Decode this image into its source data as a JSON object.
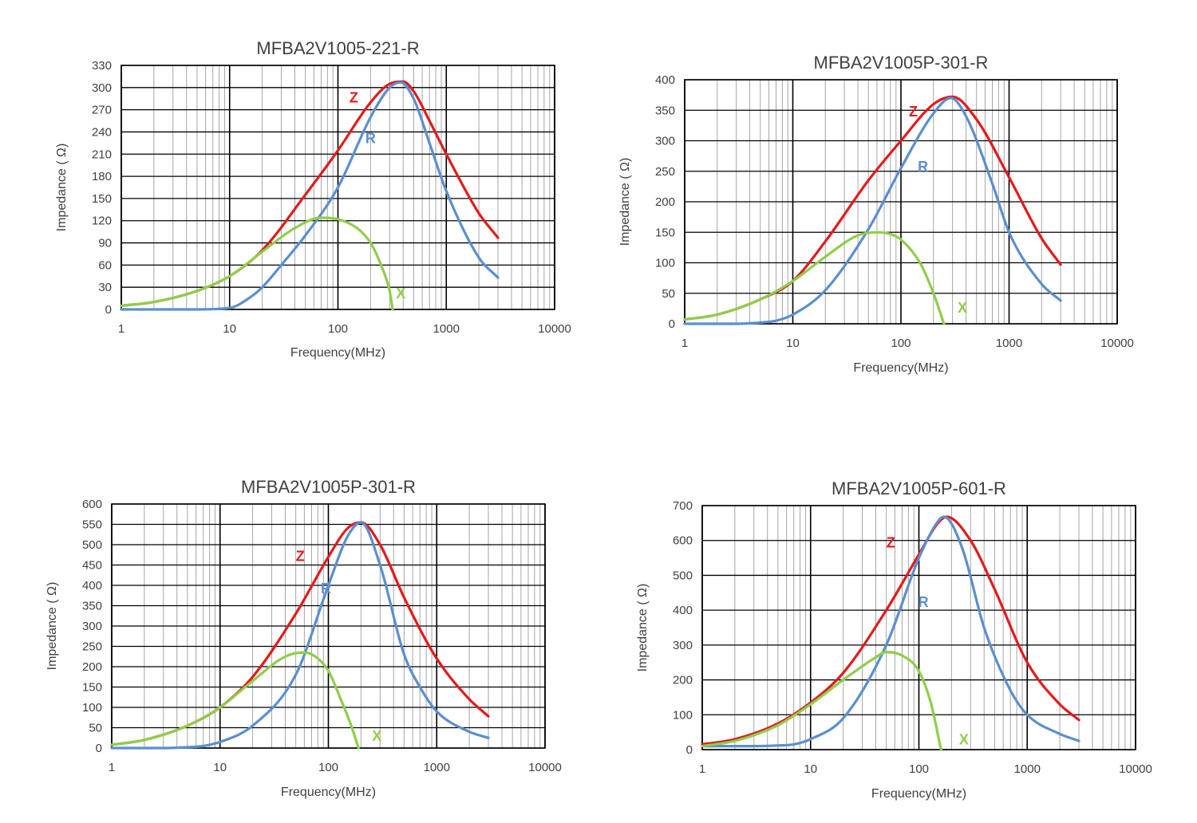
{
  "chart_data": [
    {
      "type": "line",
      "title": "MFBA2V1005-221-R",
      "xlabel": "Frequency(MHz)",
      "ylabel": "Impedance ( Ω)",
      "xscale": "log",
      "xlim": [
        1,
        10000
      ],
      "ylim": [
        0,
        330
      ],
      "yticks": [
        0,
        30,
        60,
        90,
        120,
        150,
        180,
        210,
        240,
        270,
        300,
        330
      ],
      "xticks": [
        1,
        10,
        100,
        1000,
        10000
      ],
      "xtick_labels": [
        "1",
        "10",
        "100",
        "1000",
        "10000"
      ],
      "series": [
        {
          "name": "Z",
          "color": "#e31a1c",
          "x": [
            1,
            2,
            5,
            10,
            20,
            50,
            100,
            200,
            300,
            400,
            500,
            700,
            1000,
            2000,
            3000
          ],
          "y": [
            5,
            10,
            25,
            45,
            80,
            155,
            215,
            280,
            305,
            308,
            295,
            255,
            210,
            130,
            97
          ]
        },
        {
          "name": "R",
          "color": "#5b8fce",
          "x": [
            1,
            3,
            5,
            10,
            15,
            20,
            30,
            50,
            100,
            200,
            300,
            380,
            500,
            700,
            1000,
            2000,
            3000
          ],
          "y": [
            0,
            0,
            0,
            2,
            15,
            30,
            60,
            100,
            165,
            260,
            300,
            307,
            285,
            225,
            160,
            70,
            43
          ]
        },
        {
          "name": "X",
          "color": "#8fce4a",
          "x": [
            1,
            2,
            5,
            10,
            20,
            40,
            70,
            100,
            150,
            200,
            250,
            300,
            320
          ],
          "y": [
            5,
            10,
            25,
            45,
            78,
            110,
            124,
            122,
            110,
            90,
            60,
            25,
            0
          ]
        }
      ],
      "labels": [
        {
          "text": "Z",
          "x": 140,
          "y": 280
        },
        {
          "text": "R",
          "x": 200,
          "y": 225
        },
        {
          "text": "X",
          "x": 380,
          "y": 15
        }
      ]
    },
    {
      "type": "line",
      "title": "MFBA2V1005P-301-R",
      "xlabel": "Frequency(MHz)",
      "ylabel": "Impedance ( Ω)",
      "xscale": "log",
      "xlim": [
        1,
        10000
      ],
      "ylim": [
        0,
        400
      ],
      "yticks": [
        0,
        50,
        100,
        150,
        200,
        250,
        300,
        350,
        400
      ],
      "xticks": [
        1,
        10,
        100,
        1000,
        10000
      ],
      "xtick_labels": [
        "1",
        "10",
        "100",
        "1000",
        "10000"
      ],
      "series": [
        {
          "name": "Z",
          "color": "#e31a1c",
          "x": [
            1,
            2,
            5,
            10,
            20,
            50,
            100,
            200,
            300,
            500,
            1000,
            2000,
            3000
          ],
          "y": [
            7,
            15,
            40,
            70,
            135,
            235,
            300,
            360,
            372,
            335,
            240,
            140,
            97
          ]
        },
        {
          "name": "R",
          "color": "#5b8fce",
          "x": [
            1,
            3,
            5,
            7,
            10,
            20,
            50,
            100,
            200,
            290,
            400,
            700,
            1000,
            2000,
            3000
          ],
          "y": [
            0,
            0,
            2,
            5,
            15,
            55,
            155,
            255,
            345,
            370,
            340,
            230,
            150,
            65,
            38
          ]
        },
        {
          "name": "X",
          "color": "#8fce4a",
          "x": [
            1,
            2,
            5,
            10,
            20,
            40,
            60,
            80,
            100,
            150,
            200,
            250
          ],
          "y": [
            7,
            15,
            40,
            70,
            110,
            145,
            150,
            147,
            138,
            100,
            50,
            0
          ]
        }
      ],
      "labels": [
        {
          "text": "Z",
          "x": 130,
          "y": 340
        },
        {
          "text": "R",
          "x": 160,
          "y": 250
        },
        {
          "text": "X",
          "x": 370,
          "y": 18
        }
      ]
    },
    {
      "type": "line",
      "title": "MFBA2V1005P-301-R",
      "xlabel": "Frequency(MHz)",
      "ylabel": "Impedance ( Ω)",
      "xscale": "log",
      "xlim": [
        1,
        10000
      ],
      "ylim": [
        0,
        600
      ],
      "yticks": [
        0,
        50,
        100,
        150,
        200,
        250,
        300,
        350,
        400,
        450,
        500,
        550,
        600
      ],
      "xticks": [
        1,
        10,
        100,
        1000,
        10000
      ],
      "xtick_labels": [
        "1",
        "10",
        "100",
        "1000",
        "10000"
      ],
      "series": [
        {
          "name": "Z",
          "color": "#e31a1c",
          "x": [
            1,
            2,
            5,
            10,
            20,
            50,
            100,
            150,
            200,
            300,
            500,
            1000,
            2000,
            3000
          ],
          "y": [
            8,
            20,
            55,
            100,
            175,
            330,
            470,
            540,
            555,
            500,
            370,
            220,
            120,
            78
          ]
        },
        {
          "name": "R",
          "color": "#5b8fce",
          "x": [
            1,
            3,
            5,
            7,
            10,
            20,
            50,
            100,
            150,
            200,
            300,
            500,
            700,
            1000,
            2000,
            3000
          ],
          "y": [
            0,
            0,
            2,
            5,
            15,
            55,
            180,
            400,
            520,
            555,
            450,
            230,
            150,
            90,
            40,
            25
          ]
        },
        {
          "name": "X",
          "color": "#8fce4a",
          "x": [
            1,
            2,
            5,
            10,
            20,
            40,
            60,
            80,
            100,
            130,
            160,
            190
          ],
          "y": [
            8,
            20,
            55,
            100,
            165,
            225,
            235,
            220,
            190,
            120,
            60,
            0
          ]
        }
      ],
      "labels": [
        {
          "text": "Z",
          "x": 55,
          "y": 460
        },
        {
          "text": "R",
          "x": 95,
          "y": 380
        },
        {
          "text": "X",
          "x": 280,
          "y": 18
        }
      ]
    },
    {
      "type": "line",
      "title": "MFBA2V1005P-601-R",
      "xlabel": "Frequency(MHz)",
      "ylabel": "Impedance ( Ω)",
      "xscale": "log",
      "xlim": [
        1,
        10000
      ],
      "ylim": [
        0,
        700
      ],
      "yticks": [
        0,
        100,
        200,
        300,
        400,
        500,
        600,
        700
      ],
      "xticks": [
        1,
        10,
        100,
        1000,
        10000
      ],
      "xtick_labels": [
        "1",
        "10",
        "100",
        "1000",
        "10000"
      ],
      "series": [
        {
          "name": "Z",
          "color": "#e31a1c",
          "x": [
            1,
            2,
            5,
            10,
            20,
            50,
            100,
            150,
            180,
            300,
            500,
            1000,
            2000,
            3000
          ],
          "y": [
            15,
            30,
            75,
            135,
            220,
            400,
            560,
            650,
            668,
            600,
            460,
            250,
            130,
            85
          ]
        },
        {
          "name": "R",
          "color": "#5b8fce",
          "x": [
            1,
            3,
            5,
            7,
            10,
            20,
            50,
            100,
            150,
            170,
            250,
            400,
            700,
            1000,
            2000,
            3000
          ],
          "y": [
            10,
            10,
            12,
            15,
            30,
            90,
            300,
            550,
            655,
            668,
            580,
            350,
            170,
            100,
            45,
            25
          ]
        },
        {
          "name": "X",
          "color": "#8fce4a",
          "x": [
            1,
            2,
            5,
            10,
            20,
            40,
            50,
            70,
            100,
            130,
            160
          ],
          "y": [
            10,
            25,
            70,
            130,
            200,
            265,
            280,
            270,
            225,
            130,
            0
          ]
        }
      ],
      "labels": [
        {
          "text": "Z",
          "x": 55,
          "y": 580
        },
        {
          "text": "R",
          "x": 110,
          "y": 410
        },
        {
          "text": "X",
          "x": 260,
          "y": 15
        }
      ]
    }
  ]
}
